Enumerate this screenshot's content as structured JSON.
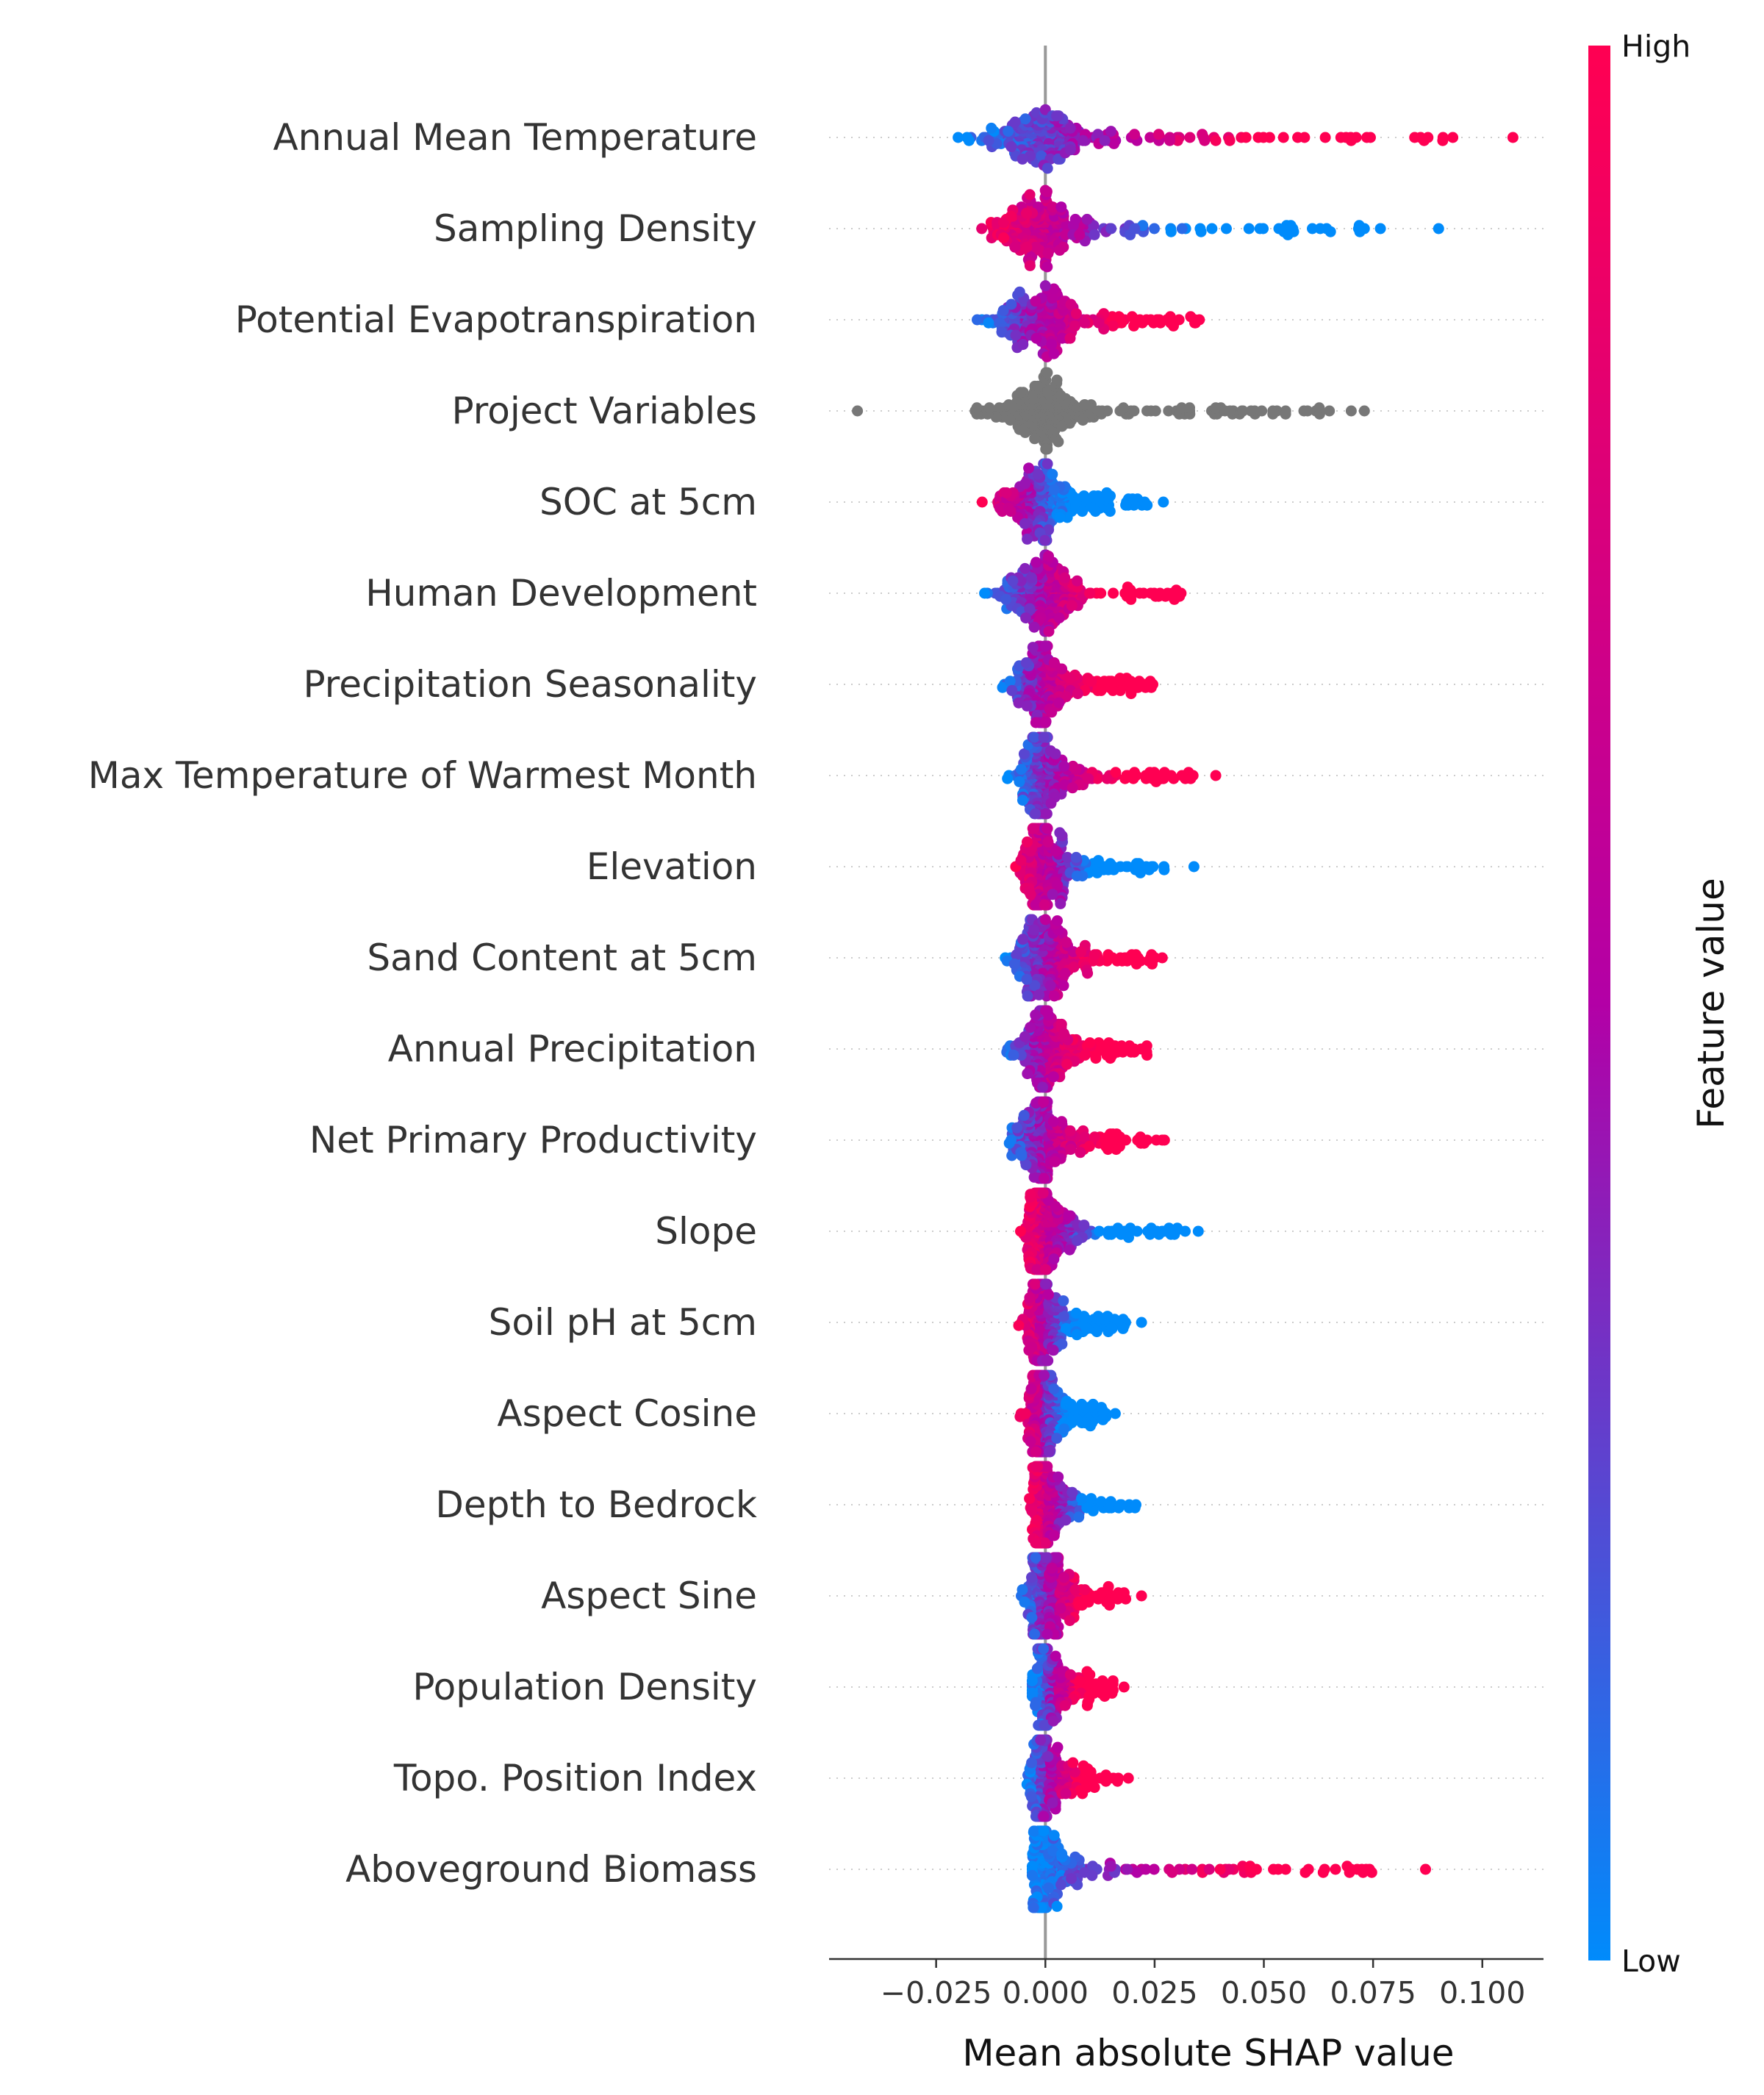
{
  "chart_data": {
    "type": "scatter",
    "subtype": "shap-beeswarm",
    "xlabel": "Mean absolute SHAP value",
    "xlim": [
      -0.0495,
      0.114
    ],
    "x_ticks": [
      {
        "value": -0.025,
        "label": "−0.025"
      },
      {
        "value": 0.0,
        "label": "0.000"
      },
      {
        "value": 0.025,
        "label": "0.025"
      },
      {
        "value": 0.05,
        "label": "0.050"
      },
      {
        "value": 0.075,
        "label": "0.075"
      },
      {
        "value": 0.1,
        "label": "0.100"
      }
    ],
    "grid": false,
    "colorbar": {
      "label": "Feature value",
      "high_label": "High",
      "low_label": "Low",
      "high_color": "#ff0052",
      "low_color": "#008bfb"
    },
    "features": [
      {
        "name": "Annual Mean Temperature",
        "min": -0.02,
        "max": 0.107,
        "low_side": "negative",
        "no_value": false,
        "outliers": [
          0.091,
          0.107
        ]
      },
      {
        "name": "Sampling Density",
        "min": -0.017,
        "max": 0.09,
        "low_side": "positive",
        "no_value": false,
        "outliers": [
          0.073,
          0.09
        ]
      },
      {
        "name": "Potential Evapotranspiration",
        "min": -0.017,
        "max": 0.045,
        "low_side": "negative",
        "no_value": false,
        "outliers": []
      },
      {
        "name": "Project Variables",
        "min": -0.043,
        "max": 0.073,
        "low_side": "negative",
        "no_value": true,
        "outliers": [
          -0.043,
          0.03,
          0.033,
          0.06,
          0.065,
          0.07,
          0.073
        ]
      },
      {
        "name": "SOC at 5cm",
        "min": -0.015,
        "max": 0.027,
        "low_side": "positive",
        "no_value": false,
        "outliers": [
          0.027
        ]
      },
      {
        "name": "Human Development",
        "min": -0.014,
        "max": 0.036,
        "low_side": "negative",
        "no_value": false,
        "outliers": []
      },
      {
        "name": "Precipitation Seasonality",
        "min": -0.012,
        "max": 0.03,
        "low_side": "negative",
        "no_value": false,
        "outliers": []
      },
      {
        "name": "Max Temperature of Warmest Month",
        "min": -0.009,
        "max": 0.039,
        "low_side": "negative",
        "no_value": false,
        "outliers": [
          0.027,
          0.039
        ]
      },
      {
        "name": "Elevation",
        "min": -0.008,
        "max": 0.034,
        "low_side": "positive",
        "no_value": false,
        "outliers": [
          0.034
        ]
      },
      {
        "name": "Sand Content at 5cm",
        "min": -0.01,
        "max": 0.032,
        "low_side": "negative",
        "no_value": false,
        "outliers": []
      },
      {
        "name": "Annual Precipitation",
        "min": -0.011,
        "max": 0.027,
        "low_side": "negative",
        "no_value": false,
        "outliers": []
      },
      {
        "name": "Net Primary Productivity",
        "min": -0.011,
        "max": 0.031,
        "low_side": "negative",
        "no_value": false,
        "outliers": []
      },
      {
        "name": "Slope",
        "min": -0.006,
        "max": 0.035,
        "low_side": "positive",
        "no_value": false,
        "outliers": [
          0.026,
          0.032,
          0.035
        ]
      },
      {
        "name": "Soil pH at 5cm",
        "min": -0.007,
        "max": 0.022,
        "low_side": "positive",
        "no_value": false,
        "outliers": [
          0.022
        ]
      },
      {
        "name": "Aspect Cosine",
        "min": -0.006,
        "max": 0.016,
        "low_side": "positive",
        "no_value": false,
        "outliers": [
          0.016
        ]
      },
      {
        "name": "Depth to Bedrock",
        "min": -0.004,
        "max": 0.024,
        "low_side": "positive",
        "no_value": false,
        "outliers": []
      },
      {
        "name": "Aspect Sine",
        "min": -0.006,
        "max": 0.022,
        "low_side": "negative",
        "no_value": false,
        "outliers": [
          0.018,
          0.022
        ]
      },
      {
        "name": "Population Density",
        "min": -0.003,
        "max": 0.018,
        "low_side": "negative",
        "no_value": false,
        "outliers": [
          0.018
        ]
      },
      {
        "name": "Topo. Position Index",
        "min": -0.005,
        "max": 0.019,
        "low_side": "negative",
        "no_value": false,
        "outliers": [
          0.019
        ]
      },
      {
        "name": "Aboveground Biomass",
        "min": -0.003,
        "max": 0.087,
        "low_side": "negative",
        "no_value": false,
        "outliers": [
          0.029,
          0.032,
          0.04,
          0.042,
          0.055,
          0.087
        ]
      }
    ]
  }
}
